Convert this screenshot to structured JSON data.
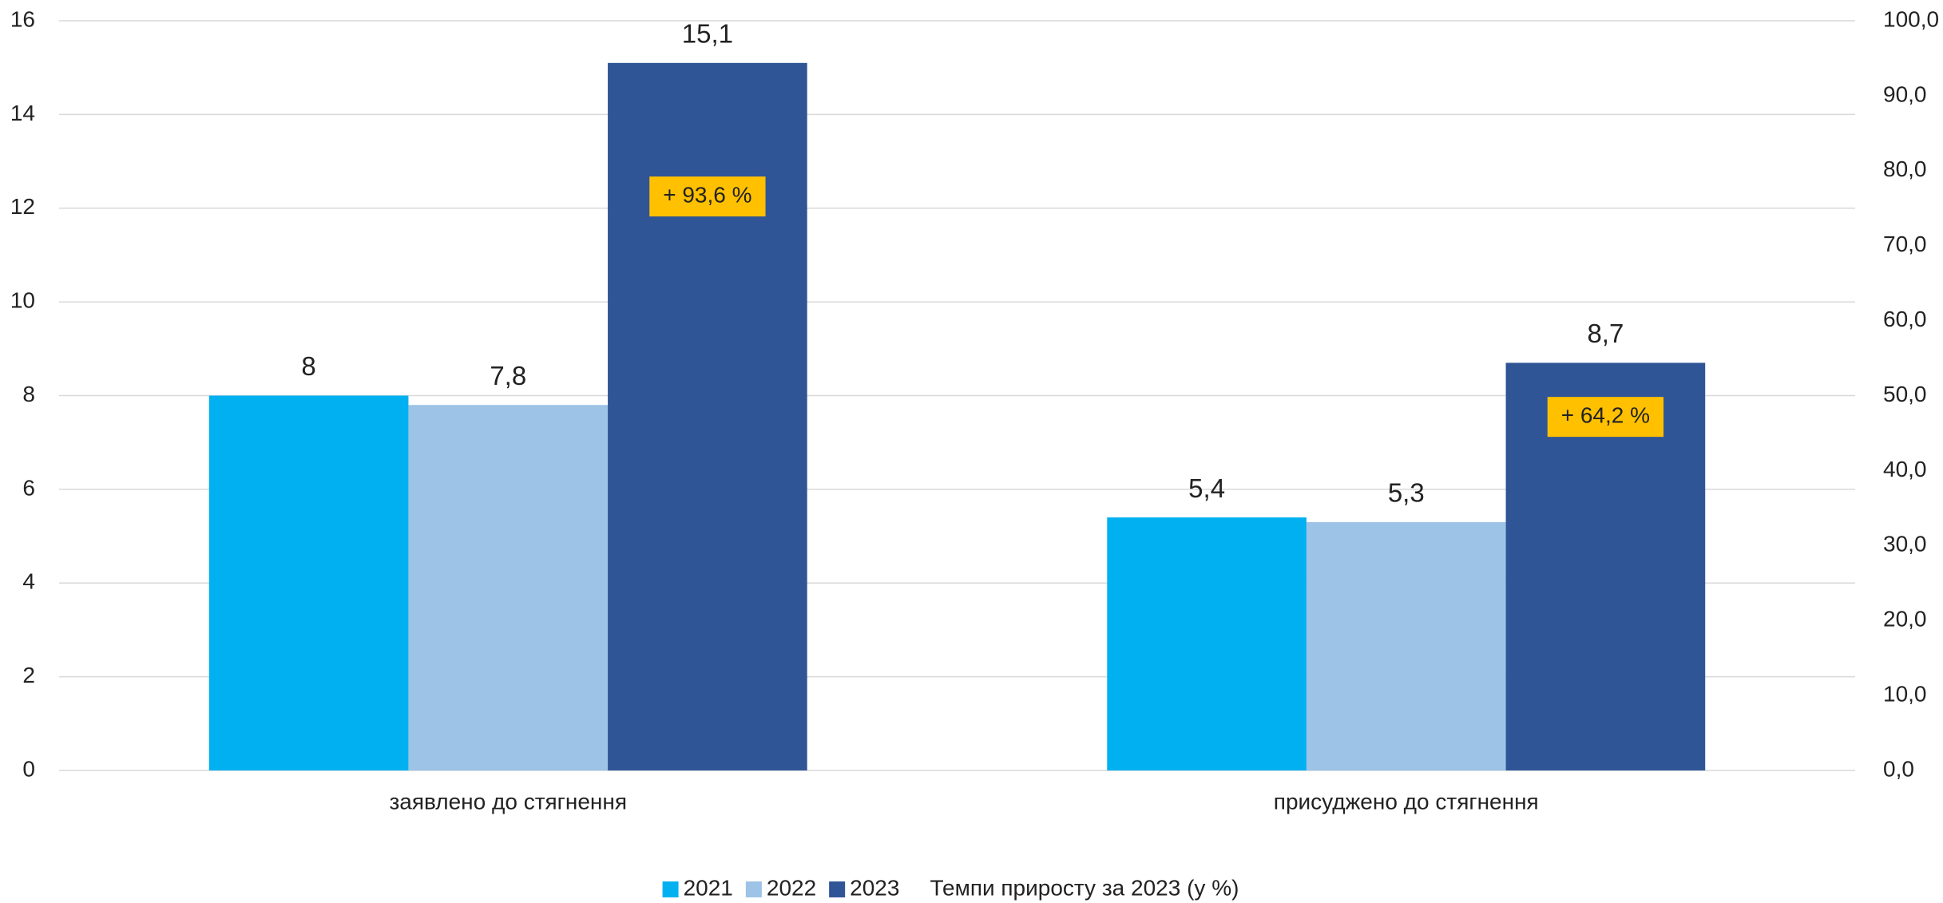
{
  "chart_data": {
    "type": "bar",
    "categories": [
      "заявлено до стягнення",
      "присуджено до стягнення"
    ],
    "series": [
      {
        "name": "2021",
        "color": "#00b0f0",
        "values": [
          8,
          5.4
        ],
        "value_labels": [
          "8",
          "5,4"
        ]
      },
      {
        "name": "2022",
        "color": "#9dc3e6",
        "values": [
          7.8,
          5.3
        ],
        "value_labels": [
          "7,8",
          "5,3"
        ]
      },
      {
        "name": "2023",
        "color": "#2f5597",
        "values": [
          15.1,
          8.7
        ],
        "value_labels": [
          "15,1",
          "8,7"
        ]
      },
      {
        "name": "Темпи приросту за 2023 (у %)",
        "axis": "y2",
        "color": "#ffc000",
        "values": [
          93.6,
          64.2
        ],
        "value_labels": [
          "+ 93,6 %",
          "+ 64,2 %"
        ]
      }
    ],
    "ylim": [
      0,
      16
    ],
    "yticks": [
      0,
      2,
      4,
      6,
      8,
      10,
      12,
      14,
      16
    ],
    "y2lim": [
      0,
      100
    ],
    "y2ticks": [
      {
        "value": 0,
        "label": "0,0"
      },
      {
        "value": 10,
        "label": "10,0"
      },
      {
        "value": 20,
        "label": "20,0"
      },
      {
        "value": 30,
        "label": "30,0"
      },
      {
        "value": 40,
        "label": "40,0"
      },
      {
        "value": 50,
        "label": "50,0"
      },
      {
        "value": 60,
        "label": "60,0"
      },
      {
        "value": 70,
        "label": "70,0"
      },
      {
        "value": 80,
        "label": "80,0"
      },
      {
        "value": 90,
        "label": "90,0"
      },
      {
        "value": 100,
        "label": "100,0"
      }
    ],
    "grid": true,
    "legend": "bottom"
  }
}
